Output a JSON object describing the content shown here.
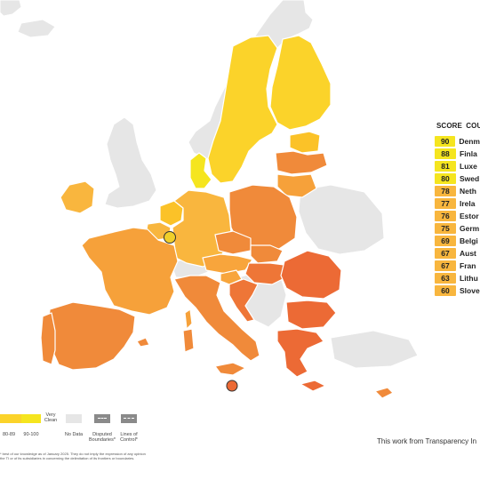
{
  "colors": {
    "ocean": "#ffffff",
    "no_data": "#e6e6e6",
    "border": "#ffffff",
    "score_90": "#f5e51f",
    "score_80s": "#fbd01f",
    "score_75s": "#f9a33b",
    "score_70s": "#f6a13a",
    "score_65s": "#f08a3a",
    "score_60s": "#ee7637",
    "score_50s": "#ec6a35",
    "marker_luxembourg": "#f0cf2a",
    "marker_malta": "#ec6a35"
  },
  "table": {
    "header_score": "SCORE",
    "header_country": "COUNT",
    "rows": [
      {
        "score": "90",
        "name": "Denm",
        "color": "#f5e51f"
      },
      {
        "score": "88",
        "name": "Finla",
        "color": "#f5e51f"
      },
      {
        "score": "81",
        "name": "Luxe",
        "color": "#f5e51f"
      },
      {
        "score": "80",
        "name": "Swed",
        "color": "#f5e51f"
      },
      {
        "score": "78",
        "name": "Neth",
        "color": "#f8b63e"
      },
      {
        "score": "77",
        "name": "Irela",
        "color": "#f8b63e"
      },
      {
        "score": "76",
        "name": "Estor",
        "color": "#f8b63e"
      },
      {
        "score": "75",
        "name": "Germ",
        "color": "#f8b63e"
      },
      {
        "score": "69",
        "name": "Belgi",
        "color": "#f8b63e"
      },
      {
        "score": "67",
        "name": "Aust",
        "color": "#f8b63e"
      },
      {
        "score": "67",
        "name": "Fran",
        "color": "#f8b63e"
      },
      {
        "score": "63",
        "name": "Lithu",
        "color": "#f8b63e"
      },
      {
        "score": "60",
        "name": "Slove",
        "color": "#f8b63e"
      }
    ]
  },
  "legend": {
    "very_clean": "Very\nClean",
    "range_80_89": "80-89",
    "range_90_100": "90-100",
    "no_data": "No Data",
    "disputed": "Disputed\nBoundaries*",
    "lines_of_control": "Lines of\nControl*"
  },
  "disclaimer": "* best of our knowledge as of January 2025. They do not imply the expression of any opinion\nthe TI or of its subsidiaries in concerning the delimitation of its frontiers or boundaries.",
  "credit": "This work from Transparency In"
}
